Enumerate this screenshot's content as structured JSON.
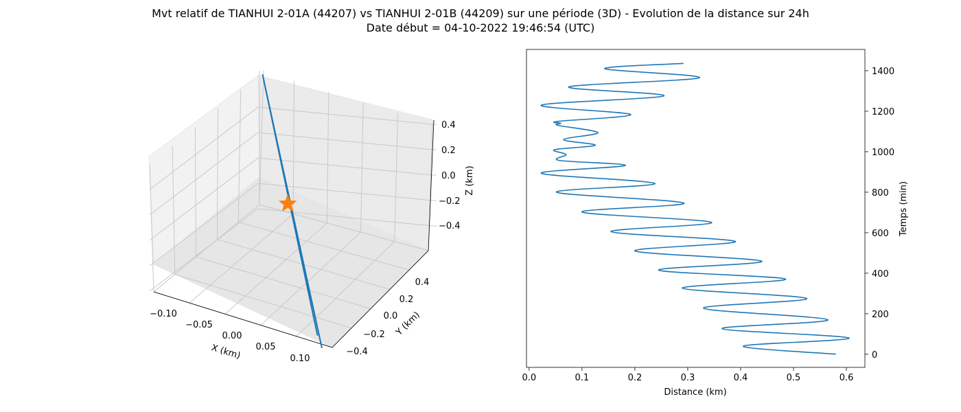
{
  "title_line1": "Mvt relatif de TIANHUI 2-01A (44207) vs TIANHUI 2-01B (44209) sur une période (3D) - Evolution de la distance sur 24h",
  "title_line2": "Date début = 04-10-2022 19:46:54 (UTC)",
  "chart_data": [
    {
      "type": "line3d",
      "xlabel": "X (km)",
      "ylabel": "Y (km)",
      "zlabel": "Z (km)",
      "x_ticks": [
        "−0.10",
        "−0.05",
        "0.00",
        "0.05",
        "0.10"
      ],
      "y_ticks": [
        "−0.4",
        "−0.2",
        "0.0",
        "0.2",
        "0.4"
      ],
      "z_ticks": [
        "0.4",
        "0.2",
        "0.0",
        "−0.2",
        "−0.4"
      ],
      "xlim": [
        -0.12,
        0.12
      ],
      "ylim": [
        -0.45,
        0.55
      ],
      "zlim": [
        -0.5,
        0.45
      ],
      "series": [
        {
          "marker": "line",
          "color": "#1f77b4",
          "points": [
            [
              0.11,
              -0.48,
              -0.5
            ],
            [
              -0.1,
              0.5,
              0.4
            ],
            [
              0.1,
              -0.45,
              -0.45
            ]
          ]
        },
        {
          "marker": "star",
          "color": "#ff7f0e",
          "points": [
            [
              0.0,
              0.0,
              0.0
            ]
          ]
        }
      ],
      "grid": true
    },
    {
      "type": "line",
      "xlabel": "Distance (km)",
      "ylabel": "Temps (min)",
      "x_ticks": [
        "0.0",
        "0.1",
        "0.2",
        "0.3",
        "0.4",
        "0.5",
        "0.6"
      ],
      "y_ticks": [
        "0",
        "200",
        "400",
        "600",
        "800",
        "1000",
        "1200",
        "1400"
      ],
      "xlim": [
        -0.005,
        0.635
      ],
      "ylim": [
        -65,
        1505
      ],
      "color": "#1f77b4",
      "series": [
        {
          "name": "",
          "points": [
            [
              0.58,
              0
            ],
            [
              0.405,
              40
            ],
            [
              0.605,
              80
            ],
            [
              0.365,
              126
            ],
            [
              0.565,
              170
            ],
            [
              0.33,
              227
            ],
            [
              0.525,
              275
            ],
            [
              0.29,
              326
            ],
            [
              0.485,
              371
            ],
            [
              0.245,
              415
            ],
            [
              0.44,
              459
            ],
            [
              0.2,
              510
            ],
            [
              0.39,
              557
            ],
            [
              0.155,
              605
            ],
            [
              0.345,
              651
            ],
            [
              0.1,
              702
            ],
            [
              0.293,
              746
            ],
            [
              0.052,
              800
            ],
            [
              0.238,
              843
            ],
            [
              0.023,
              893
            ],
            [
              0.182,
              932
            ],
            [
              0.057,
              957
            ],
            [
              0.07,
              986
            ],
            [
              0.048,
              1010
            ],
            [
              0.125,
              1032
            ],
            [
              0.065,
              1060
            ],
            [
              0.13,
              1094
            ],
            [
              0.055,
              1130
            ],
            [
              0.06,
              1140
            ],
            [
              0.055,
              1150
            ],
            [
              0.192,
              1184
            ],
            [
              0.023,
              1230
            ],
            [
              0.255,
              1276
            ],
            [
              0.075,
              1320
            ],
            [
              0.322,
              1365
            ],
            [
              0.143,
              1410
            ],
            [
              0.292,
              1436
            ]
          ]
        }
      ]
    }
  ]
}
